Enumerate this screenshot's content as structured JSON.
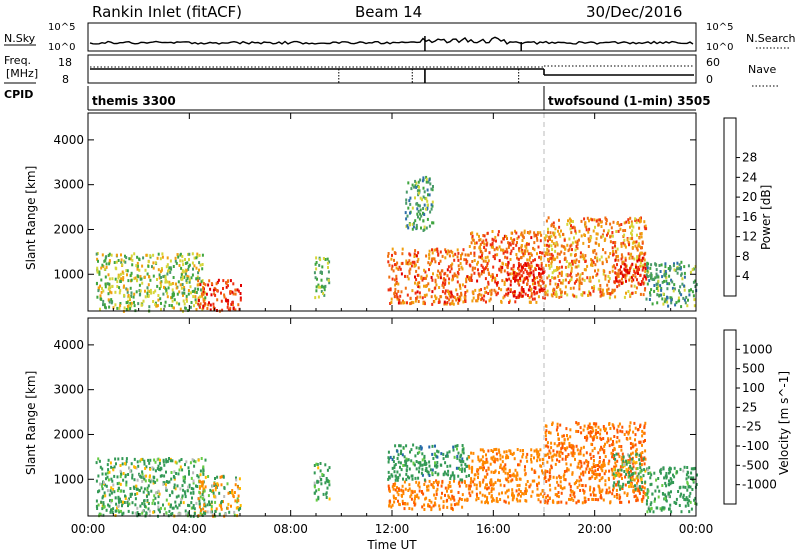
{
  "header": {
    "station": "Rankin Inlet (fitACF)",
    "beam": "Beam 14",
    "date": "30/Dec/2016"
  },
  "summary_panels": {
    "nsky_label": "N.Sky",
    "nsky_ticks": [
      "10^5",
      "10^0"
    ],
    "nsearch_label": "N.Search",
    "nsearch_ticks": [
      "10^5",
      "10^0"
    ],
    "freq_label_line1": "Freq.",
    "freq_label_line2": "[MHz]",
    "freq_ticks": [
      "18",
      "8"
    ],
    "nave_label": "Nave",
    "nave_ticks": [
      "60",
      "0"
    ],
    "cpid_label": "CPID",
    "cpid_segments": [
      {
        "label": "themis 3300",
        "start_hour": 0,
        "end_hour": 18.0
      },
      {
        "label": "twofsound (1-min) 3505",
        "start_hour": 18.0,
        "end_hour": 24
      }
    ]
  },
  "time_axis": {
    "label": "Time UT",
    "ticks": [
      "00:00",
      "04:00",
      "08:00",
      "12:00",
      "16:00",
      "20:00",
      "00:00"
    ]
  },
  "colors": {
    "power_scale": [
      "#1515e8",
      "#2e6fa8",
      "#4a9a6a",
      "#3fa53f",
      "#d6d63a",
      "#f0a010",
      "#f07010",
      "#f03010",
      "#e00000"
    ],
    "velocity_scale": [
      "#ee0000",
      "#ff5500",
      "#ff8800",
      "#ffbb00",
      "#bbbbbb",
      "#66cc44",
      "#339955",
      "#2266aa",
      "#1133cc"
    ]
  },
  "chart_data": [
    {
      "type": "heatmap",
      "name": "power",
      "xlabel": "Time UT",
      "ylabel": "Slant Range [km]",
      "xlim": [
        0,
        24
      ],
      "ylim": [
        180,
        4600
      ],
      "yticks": [
        "1000",
        "2000",
        "3000",
        "4000"
      ],
      "colorbar": {
        "label": "Power [dB]",
        "ticks": [
          "4",
          "8",
          "12",
          "16",
          "20",
          "24",
          "28"
        ],
        "range": [
          0,
          30
        ]
      },
      "scatter_regions": [
        {
          "t0": 0.3,
          "t1": 4.6,
          "r0": 200,
          "r1": 1500,
          "level": 14
        },
        {
          "t0": 4.3,
          "t1": 6.0,
          "r0": 200,
          "r1": 900,
          "level": 25
        },
        {
          "t0": 8.9,
          "t1": 9.5,
          "r0": 500,
          "r1": 1400,
          "level": 12
        },
        {
          "t0": 11.8,
          "t1": 15.0,
          "r0": 350,
          "r1": 1600,
          "level": 22
        },
        {
          "t0": 12.5,
          "t1": 13.6,
          "r0": 2000,
          "r1": 3200,
          "level": 10
        },
        {
          "t0": 15.0,
          "t1": 18.0,
          "r0": 400,
          "r1": 2000,
          "level": 22
        },
        {
          "t0": 16.5,
          "t1": 18.0,
          "r0": 500,
          "r1": 1300,
          "level": 27
        },
        {
          "t0": 18.0,
          "t1": 22.0,
          "r0": 500,
          "r1": 2300,
          "level": 20
        },
        {
          "t0": 20.7,
          "t1": 22.0,
          "r0": 800,
          "r1": 1400,
          "level": 26
        },
        {
          "t0": 22.0,
          "t1": 24.0,
          "r0": 300,
          "r1": 1300,
          "level": 10
        }
      ]
    },
    {
      "type": "heatmap",
      "name": "velocity",
      "xlabel": "Time UT",
      "ylabel": "Slant Range [km]",
      "xlim": [
        0,
        24
      ],
      "ylim": [
        180,
        4600
      ],
      "yticks": [
        "1000",
        "2000",
        "3000",
        "4000"
      ],
      "colorbar": {
        "label": "Velocity [m s^-1]",
        "ticks": [
          "1000",
          "500",
          "100",
          "25",
          "-25",
          "-100",
          "-500",
          "-1000"
        ]
      },
      "scatter_regions": [
        {
          "t0": 0.3,
          "t1": 4.6,
          "r0": 200,
          "r1": 1500,
          "velocity": 150
        },
        {
          "t0": 4.3,
          "t1": 6.0,
          "r0": 200,
          "r1": 1100,
          "velocity": 0
        },
        {
          "t0": 8.9,
          "t1": 9.5,
          "r0": 500,
          "r1": 1400,
          "velocity": 200
        },
        {
          "t0": 11.8,
          "t1": 15.0,
          "r0": 350,
          "r1": 1000,
          "velocity": -400
        },
        {
          "t0": 11.8,
          "t1": 15.0,
          "r0": 1000,
          "r1": 1800,
          "velocity": 300
        },
        {
          "t0": 15.0,
          "t1": 18.0,
          "r0": 500,
          "r1": 1700,
          "velocity": -350
        },
        {
          "t0": 18.0,
          "t1": 22.0,
          "r0": 500,
          "r1": 2300,
          "velocity": -450
        },
        {
          "t0": 20.7,
          "t1": 22.0,
          "r0": 800,
          "r1": 1600,
          "velocity": 150
        },
        {
          "t0": 22.0,
          "t1": 24.0,
          "r0": 300,
          "r1": 1300,
          "velocity": 250
        }
      ]
    }
  ]
}
